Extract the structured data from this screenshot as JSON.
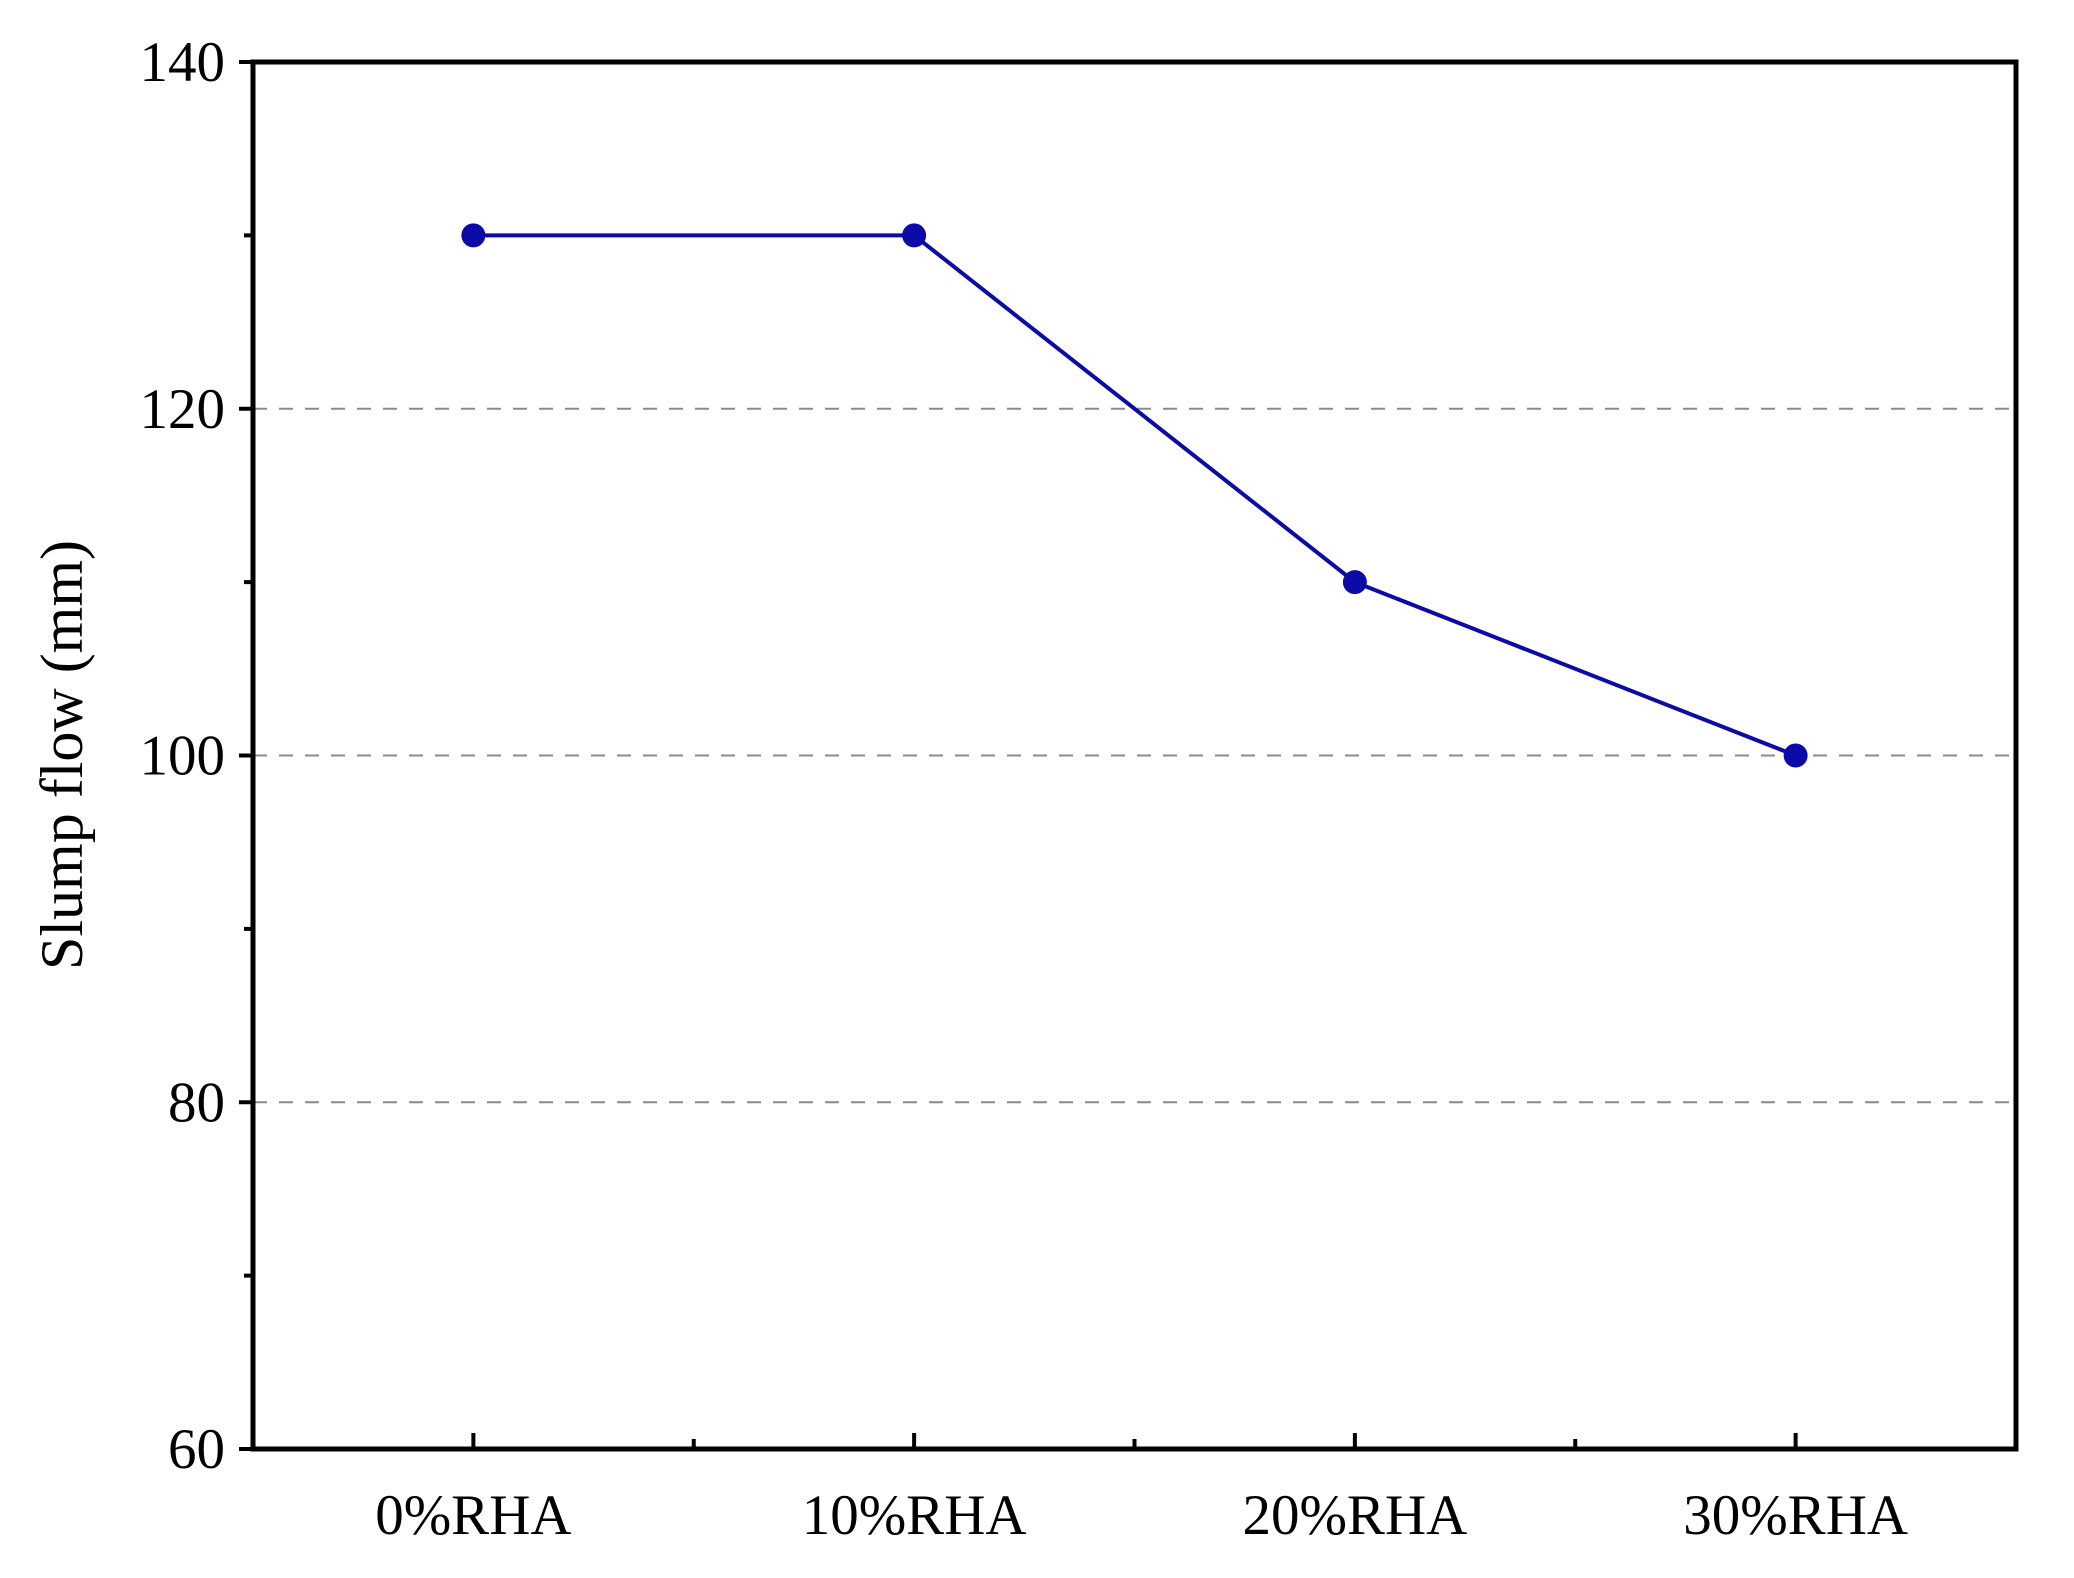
{
  "chart_data": {
    "type": "line",
    "title": "",
    "xlabel": "",
    "ylabel": "Slump flow (mm)",
    "categories": [
      "0%RHA",
      "10%RHA",
      "20%RHA",
      "30%RHA"
    ],
    "series": [
      {
        "values": [
          130,
          130,
          110,
          100
        ],
        "color": "#0b0ba8"
      }
    ],
    "ylim": [
      60,
      140
    ],
    "yticks": [
      60,
      80,
      100,
      120,
      140
    ],
    "yminor_step": 10,
    "grid": {
      "y": true,
      "style": "dashed",
      "values": [
        80,
        100,
        120
      ]
    },
    "legend": "none"
  }
}
